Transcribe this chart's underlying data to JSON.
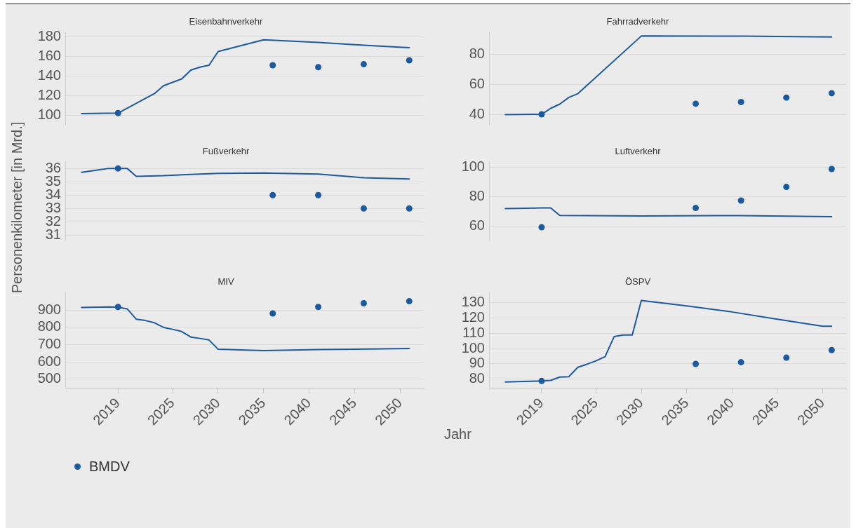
{
  "chart_data": [
    {
      "type": "line",
      "title": "Eisenbahnverkehr",
      "ylabel": "Personenkilometer [in Mrd.]",
      "xlim": [
        2013.2,
        2052.6
      ],
      "xticks": [
        2019,
        2025,
        2030,
        2035,
        2040,
        2045,
        2050
      ],
      "ylim": [
        90,
        185
      ],
      "yticks": [
        100,
        120,
        140,
        160,
        180
      ],
      "grid": "y",
      "tick_labels": "y",
      "series": [
        {
          "color": "#1c5a9f",
          "x": [
            2015,
            2019,
            2023,
            2024,
            2026,
            2027,
            2028,
            2029,
            2030,
            2035,
            2041,
            2046,
            2051
          ],
          "values": [
            101.5,
            102,
            122,
            130,
            137,
            146,
            149,
            151,
            165,
            177,
            174.3,
            171.5,
            169
          ]
        },
        {
          "type": "scatter",
          "marker": "circle",
          "color": "#1c5a9f",
          "x": [
            2019,
            2036,
            2041,
            2046,
            2051
          ],
          "values": [
            102,
            151,
            149,
            152,
            156
          ]
        }
      ]
    },
    {
      "type": "line",
      "title": "Fahrradverkehr",
      "xlim": [
        2013.2,
        2052.6
      ],
      "xticks": [
        2019,
        2025,
        2030,
        2035,
        2040,
        2045,
        2050
      ],
      "ylim": [
        33,
        95
      ],
      "yticks": [
        40,
        60,
        80
      ],
      "grid": "y",
      "tick_labels": "y",
      "series": [
        {
          "color": "#1c5a9f",
          "x": [
            2015,
            2019,
            2020,
            2021,
            2022,
            2023,
            2030,
            2041,
            2051
          ],
          "values": [
            39.8,
            40,
            44,
            46.8,
            51.3,
            53.8,
            92.3,
            92.2,
            91.6
          ]
        },
        {
          "type": "scatter",
          "marker": "circle",
          "color": "#1c5a9f",
          "x": [
            2019,
            2036,
            2041,
            2046,
            2051
          ],
          "values": [
            40,
            47.1,
            48.2,
            51.2,
            54.1
          ]
        }
      ]
    },
    {
      "type": "line",
      "title": "Fußverkehr",
      "xlim": [
        2013.2,
        2052.6
      ],
      "xticks": [
        2019,
        2025,
        2030,
        2035,
        2040,
        2045,
        2050
      ],
      "ylim": [
        30.6,
        36.5
      ],
      "yticks": [
        31,
        32,
        33,
        34,
        35,
        36
      ],
      "grid": "y",
      "tick_labels": "y",
      "series": [
        {
          "color": "#1c5a9f",
          "x": [
            2015,
            2017,
            2018,
            2019,
            2020,
            2021,
            2024,
            2027,
            2030,
            2035,
            2041,
            2046,
            2051
          ],
          "values": [
            35.7,
            35.9,
            36,
            36,
            36,
            35.4,
            35.45,
            35.55,
            35.62,
            35.65,
            35.57,
            35.3,
            35.2
          ]
        },
        {
          "type": "scatter",
          "marker": "circle",
          "color": "#1c5a9f",
          "x": [
            2019,
            2036,
            2041,
            2046,
            2051
          ],
          "values": [
            36,
            34,
            34,
            33,
            33
          ]
        }
      ]
    },
    {
      "type": "line",
      "title": "Luftverkehr",
      "xlim": [
        2013.2,
        2052.6
      ],
      "xticks": [
        2019,
        2025,
        2030,
        2035,
        2040,
        2045,
        2050
      ],
      "ylim": [
        50,
        104
      ],
      "yticks": [
        60,
        80,
        100
      ],
      "grid": "y",
      "tick_labels": "y",
      "series": [
        {
          "color": "#1c5a9f",
          "x": [
            2015,
            2019,
            2020,
            2021,
            2030,
            2041,
            2051
          ],
          "values": [
            71.8,
            72.3,
            72.3,
            67.2,
            66.8,
            67.1,
            66.3
          ]
        },
        {
          "type": "scatter",
          "marker": "circle",
          "color": "#1c5a9f",
          "x": [
            2019,
            2036,
            2041,
            2046,
            2051
          ],
          "values": [
            59.1,
            72.3,
            77.4,
            86.7,
            99
          ]
        }
      ]
    },
    {
      "type": "line",
      "title": "MIV",
      "xlabel": "Jahr",
      "legend": "bottom left",
      "xlim": [
        2013.2,
        2052.6
      ],
      "xticks": [
        2019,
        2025,
        2030,
        2035,
        2040,
        2045,
        2050
      ],
      "ylim": [
        447,
        1005
      ],
      "yticks": [
        500,
        600,
        700,
        800,
        900
      ],
      "grid": "y",
      "series": [
        {
          "color": "#1c5a9f",
          "x": [
            2015,
            2018,
            2019,
            2020,
            2021,
            2022,
            2023,
            2024,
            2025,
            2026,
            2027,
            2028,
            2029,
            2030,
            2035,
            2041,
            2051
          ],
          "values": [
            916,
            919,
            917,
            908,
            848,
            840,
            827,
            800,
            789,
            776,
            744,
            736,
            727,
            673,
            665,
            671,
            677
          ]
        },
        {
          "name": "BMDV",
          "type": "scatter",
          "marker": "circle",
          "color": "#1c5a9f",
          "x": [
            2019,
            2036,
            2041,
            2046,
            2051
          ],
          "values": [
            919,
            881,
            919,
            940,
            952
          ]
        }
      ]
    },
    {
      "type": "line",
      "title": "ÖSPV",
      "xlim": [
        2013.2,
        2052.6
      ],
      "xticks": [
        2019,
        2025,
        2030,
        2035,
        2040,
        2045,
        2050
      ],
      "ylim": [
        74,
        137
      ],
      "yticks": [
        80,
        90,
        100,
        110,
        120,
        130
      ],
      "grid": "y",
      "series": [
        {
          "color": "#1c5a9f",
          "x": [
            2015,
            2019,
            2020,
            2021,
            2022,
            2023,
            2024,
            2025,
            2026,
            2027,
            2028,
            2029,
            2030,
            2035,
            2040,
            2045,
            2049,
            2050,
            2051
          ],
          "values": [
            78,
            78.7,
            79.1,
            81.3,
            81.5,
            87.7,
            89.7,
            91.9,
            94.7,
            107.8,
            108.9,
            108.9,
            131.5,
            128,
            124,
            119.2,
            115.5,
            114.6,
            114.6
          ]
        },
        {
          "type": "scatter",
          "marker": "circle",
          "color": "#1c5a9f",
          "x": [
            2019,
            2036,
            2041,
            2046,
            2051
          ],
          "values": [
            78.7,
            89.9,
            91,
            94,
            99
          ]
        }
      ]
    }
  ]
}
